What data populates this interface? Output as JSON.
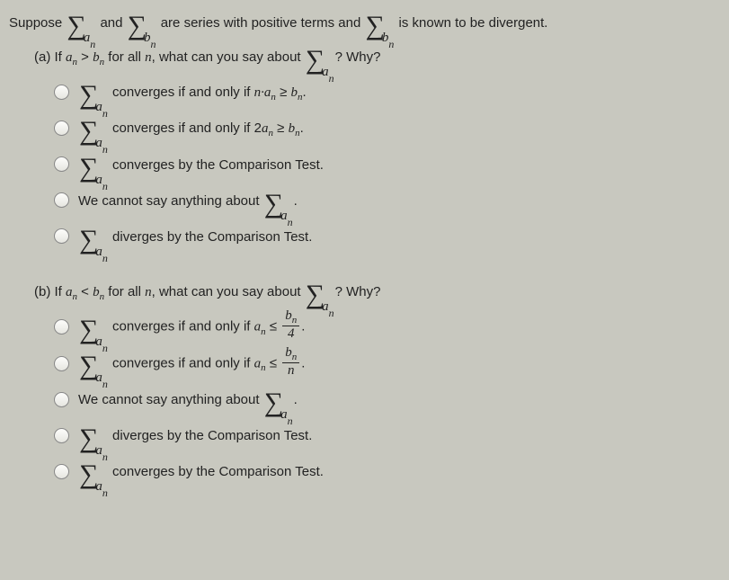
{
  "intro": {
    "t1": "Suppose",
    "t2": "and",
    "t3": "are series with positive terms and",
    "t4": "is known to be divergent."
  },
  "partA": {
    "qpre": "(a) If ",
    "qmid": " for all ",
    "n": "n",
    "qmid2": ", what can you say about ",
    "qend": "? Why?",
    "cond_a": "a",
    "cond_gt": " > ",
    "cond_b": "b"
  },
  "partB": {
    "qpre": "(b) If ",
    "qmid": " for all ",
    "n": "n",
    "qmid2": ", what can you say about ",
    "qend": "? Why?",
    "cond_a": "a",
    "cond_lt": " < ",
    "cond_b": "b"
  },
  "sigmaA": {
    "var": "a",
    "sub": "n"
  },
  "sigmaB": {
    "var": "b",
    "sub": "n"
  },
  "opt": {
    "a1": {
      "pre": "",
      "post_pre": " converges if and only if ",
      "cond": "n·a",
      "rel": " ≥ ",
      "rhs": "b",
      "end": "."
    },
    "a2": {
      "pre": "",
      "post_pre": " converges if and only if 2",
      "cond": "a",
      "rel": " ≥ ",
      "rhs": "b",
      "end": "."
    },
    "a3": {
      "pre": "",
      "post": " converges by the Comparison Test."
    },
    "a4": {
      "pre": "We cannot say anything about ",
      "post": "."
    },
    "a5": {
      "pre": "",
      "post": " diverges by the Comparison Test."
    },
    "b1": {
      "pre": "",
      "post_pre": " converges if and only if ",
      "cond": "a",
      "rel": " ≤ ",
      "frac_num_var": "b",
      "frac_num_sub": "n",
      "frac_den": "4",
      "end": "."
    },
    "b2": {
      "pre": "",
      "post_pre": " converges if and only if ",
      "cond": "a",
      "rel": " ≤ ",
      "frac_num_var": "b",
      "frac_num_sub": "n",
      "frac_den": "n",
      "end": "."
    },
    "b3": {
      "pre": "We cannot say anything about ",
      "post": "."
    },
    "b4": {
      "pre": "",
      "post": " diverges by the Comparison Test."
    },
    "b5": {
      "pre": "",
      "post": " converges by the Comparison Test."
    }
  }
}
